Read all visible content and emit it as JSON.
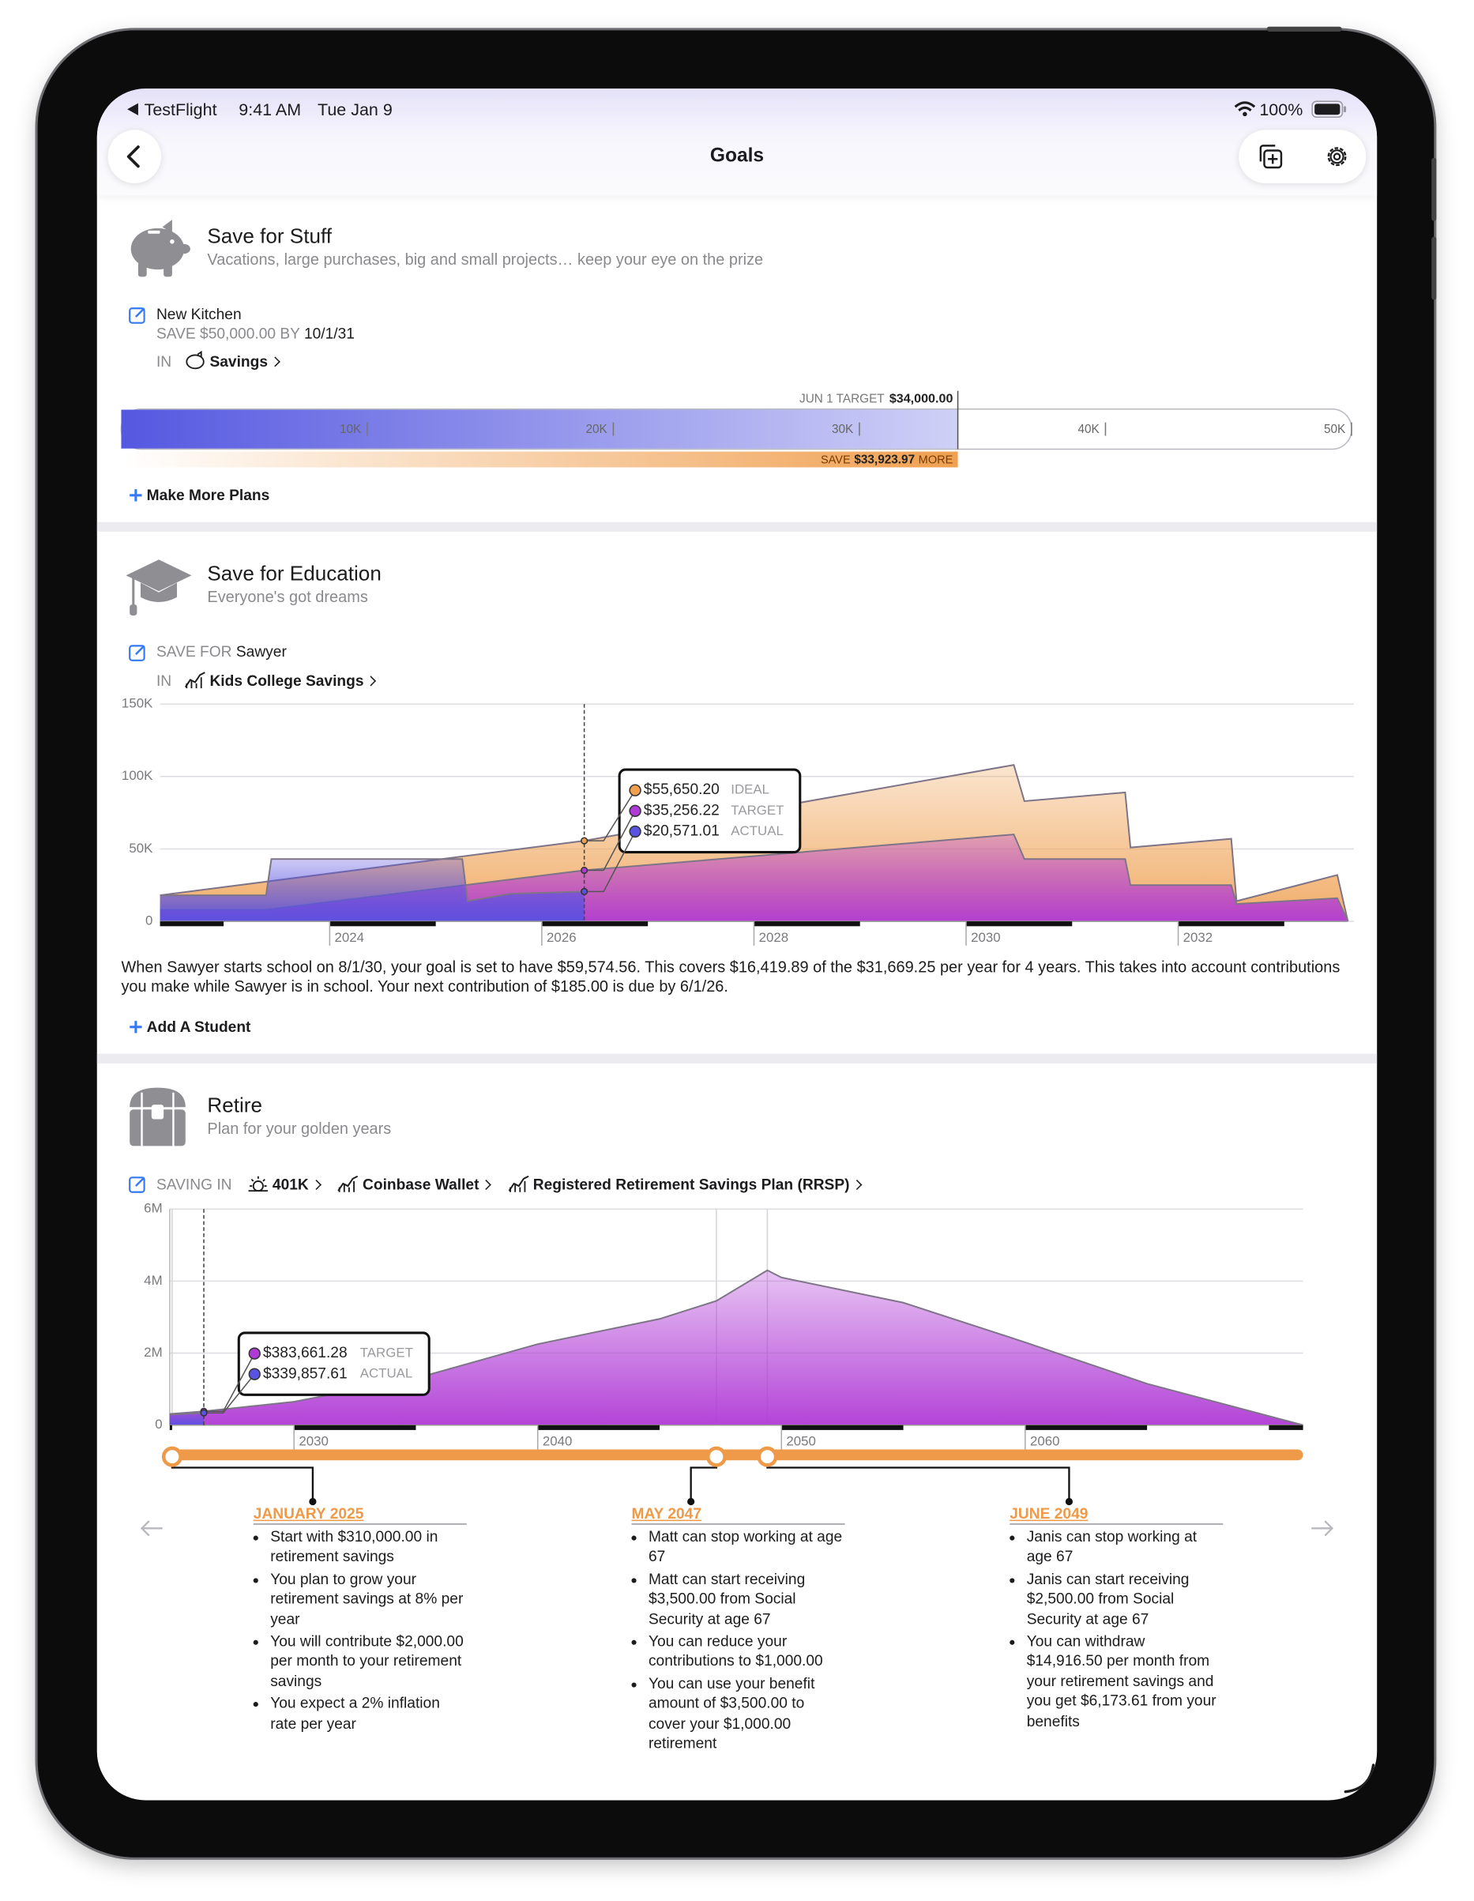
{
  "status_bar": {
    "carrier": "TestFlight",
    "time": "9:41 AM",
    "date": "Tue Jan 9",
    "battery": "100%"
  },
  "nav": {
    "title": "Goals"
  },
  "stuff": {
    "title": "Save for Stuff",
    "subtitle": "Vacations, large purchases, big and small projects… keep your eye on the prize",
    "plan": {
      "name": "New Kitchen",
      "goal_label": "SAVE $50,000.00 BY",
      "goal_date": "10/1/31",
      "account_label": "IN",
      "account": "Savings"
    },
    "progress": {
      "type": "bar",
      "color": "#5558e0",
      "save_color": "#f0a050",
      "xlim": [
        0,
        50000
      ],
      "xticks": [
        {
          "value": 10000,
          "label": "10K"
        },
        {
          "value": 20000,
          "label": "20K"
        },
        {
          "value": 30000,
          "label": "30K"
        },
        {
          "value": 40000,
          "label": "40K"
        },
        {
          "value": 50000,
          "label": "50K"
        }
      ],
      "target_label": "JUN 1 TARGET",
      "target": {
        "value": 34000,
        "value_label": "$34,000.00"
      },
      "save_label": "SAVE",
      "save": {
        "value": 33923.97,
        "value_label": "$33,923.97"
      },
      "more_label": "MORE"
    },
    "add_button": "Make More Plans"
  },
  "education": {
    "title": "Save for Education",
    "subtitle": "Everyone's got dreams",
    "student_label": "SAVE FOR",
    "student": "Sawyer",
    "account_label": "IN",
    "account": "Kids College Savings",
    "chart": {
      "type": "area",
      "grid": true,
      "xlim": [
        2022.4,
        2033.6
      ],
      "xticks": [
        2024,
        2026,
        2028,
        2030,
        2032
      ],
      "ylim": [
        0,
        150000
      ],
      "yticks": [
        0,
        {
          "value": 50000,
          "label": "50K"
        },
        {
          "value": 100000,
          "label": "100K"
        },
        {
          "value": 150000,
          "label": "150K"
        }
      ],
      "series": [
        {
          "color": "#f0a860",
          "x": [
            2022.4,
            2026.4,
            2030.45,
            2030.55,
            2031.5,
            2031.55,
            2032.5,
            2032.55,
            2033.5,
            2033.6
          ],
          "values": [
            18000,
            55650.2,
            108000,
            83000,
            89000,
            51000,
            57000,
            14000,
            32000,
            0
          ]
        },
        {
          "color": "#b03ad6",
          "x": [
            2022.4,
            2023.4,
            2026.4,
            2030.45,
            2030.55,
            2031.5,
            2031.55,
            2032.5,
            2032.55,
            2033.5,
            2033.6
          ],
          "values": [
            8000,
            8000,
            35256.22,
            60000,
            43000,
            43000,
            25000,
            25000,
            12000,
            16000,
            0
          ]
        },
        {
          "color": "#5a52e0",
          "x": [
            2022.4,
            2023.4,
            2023.45,
            2025.25,
            2025.3,
            2025.7,
            2026.4
          ],
          "values": [
            18000,
            18000,
            43000,
            43000,
            14000,
            19000,
            20571.01
          ]
        }
      ],
      "cursor_x": 2026.4,
      "tooltip": [
        {
          "name": "IDEAL",
          "value": 55650.2,
          "value_label": "$55,650.20",
          "color": "#f0a050"
        },
        {
          "name": "TARGET",
          "value": 35256.22,
          "value_label": "$35,256.22",
          "color": "#b03ad6"
        },
        {
          "name": "ACTUAL",
          "value": 20571.01,
          "value_label": "$20,571.01",
          "color": "#5a52e0"
        }
      ]
    },
    "summary": "When Sawyer starts school on 8/1/30, your goal is set to have $59,574.56. This covers $16,419.89 of the $31,669.25 per year for 4 years. This takes into account contributions you make while Sawyer is in school. Your next contribution of $185.00 is due by 6/1/26.",
    "add_button": "Add A Student"
  },
  "retire": {
    "title": "Retire",
    "subtitle": "Plan for your golden years",
    "accounts_label": "SAVING IN",
    "accounts": [
      "401K",
      "Coinbase Wallet",
      "Registered Retirement Savings Plan (RRSP)"
    ],
    "chart": {
      "type": "area",
      "grid": true,
      "axis_line": true,
      "xlim": [
        2024.9,
        2071.4
      ],
      "xticks": [
        2030,
        2040,
        2050,
        2060
      ],
      "ylim": [
        0,
        6000000
      ],
      "yticks": [
        0,
        {
          "value": 2000000,
          "label": "2M"
        },
        {
          "value": 4000000,
          "label": "4M"
        },
        {
          "value": 6000000,
          "label": "6M"
        }
      ],
      "series": [
        {
          "color": "#b03ad6",
          "x": [
            2024.9,
            2026.3,
            2030,
            2035,
            2040,
            2045,
            2047.33,
            2049.42,
            2050,
            2055,
            2060,
            2065,
            2071.4
          ],
          "values": [
            310000,
            383661.28,
            650000,
            1300000,
            2250000,
            2950000,
            3450000,
            4300000,
            4100000,
            3400000,
            2300000,
            1150000,
            0
          ]
        },
        {
          "color": "#5a52e0",
          "x": [
            2024.9,
            2026.3
          ],
          "values": [
            290000,
            339857.61
          ]
        }
      ],
      "cursor_x": 2026.3,
      "tooltip": [
        {
          "name": "TARGET",
          "value": 383661.28,
          "value_label": "$383,661.28",
          "color": "#b03ad6"
        },
        {
          "name": "ACTUAL",
          "value": 339857.61,
          "value_label": "$339,857.61",
          "color": "#5a52e0"
        }
      ],
      "timeline_color": "#ee9a48",
      "events": [
        {
          "date": "JANUARY 2025",
          "x": 2025,
          "bullets": [
            "Start with $310,000.00 in retirement savings",
            "You plan to grow your retirement savings at 8% per year",
            "You will contribute $2,000.00 per month to your retirement savings",
            "You expect a 2% inflation rate per year"
          ]
        },
        {
          "date": "MAY 2047",
          "x": 2047.33,
          "bullets": [
            "Matt can stop working at age 67",
            "Matt can start receiving $3,500.00 from Social Security at age 67",
            "You can reduce your contributions to $1,000.00",
            "You can use your benefit amount of $3,500.00 to cover your $1,000.00 retirement"
          ]
        },
        {
          "date": "JUNE 2049",
          "x": 2049.42,
          "bullets": [
            "Janis can stop working at age 67",
            "Janis can start receiving $2,500.00 from Social Security at age 67",
            "You can withdraw $14,916.50 per month from your retirement savings and you get $6,173.61 from your benefits"
          ]
        }
      ]
    }
  }
}
